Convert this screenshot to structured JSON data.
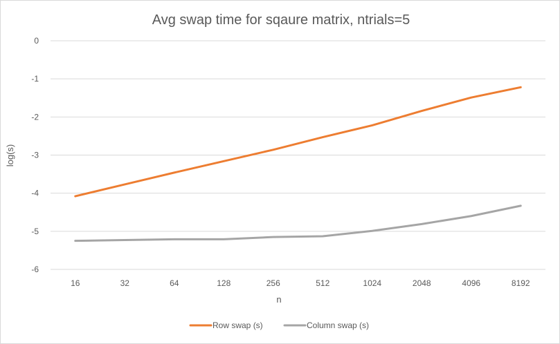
{
  "chart_data": {
    "type": "line",
    "title": "Avg swap time for sqaure matrix, ntrials=5",
    "xlabel": "n",
    "ylabel": "log(s)",
    "categories": [
      "16",
      "32",
      "64",
      "128",
      "256",
      "512",
      "1024",
      "2048",
      "4096",
      "8192"
    ],
    "ylim": [
      -6,
      0
    ],
    "yticks": [
      "0",
      "-1",
      "-2",
      "-3",
      "-4",
      "-5",
      "-6"
    ],
    "grid": true,
    "legend_position": "bottom",
    "series": [
      {
        "name": "Row swap (s)",
        "color": "#ed7d31",
        "values": [
          -4.08,
          -3.77,
          -3.46,
          -3.16,
          -2.86,
          -2.53,
          -2.22,
          -1.84,
          -1.49,
          -1.22
        ]
      },
      {
        "name": "Column swap (s)",
        "color": "#a5a5a5",
        "values": [
          -5.25,
          -5.23,
          -5.21,
          -5.21,
          -5.15,
          -5.13,
          -4.99,
          -4.81,
          -4.6,
          -4.33
        ]
      }
    ]
  }
}
